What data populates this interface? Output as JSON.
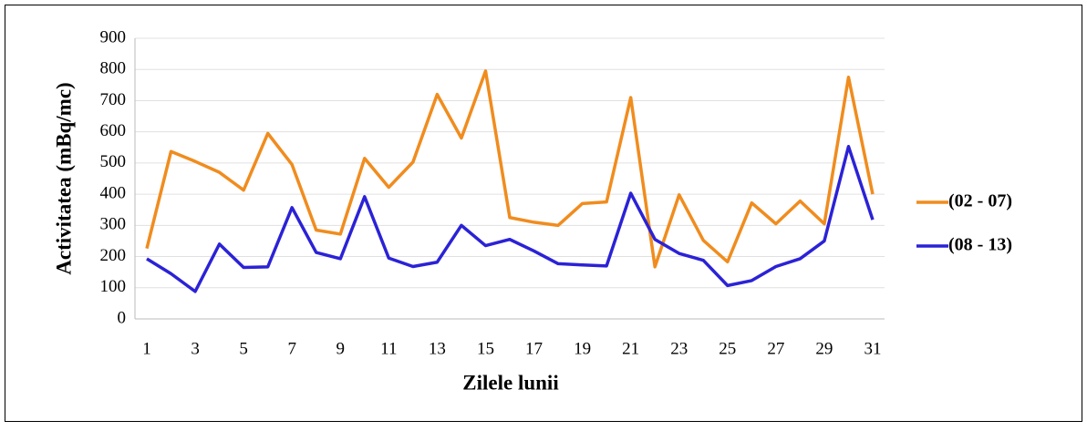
{
  "chart_data": {
    "type": "line",
    "x_label": "Zilele lunii",
    "y_label": "Activitatea (mBq/mc)",
    "categories": [
      1,
      null,
      3,
      null,
      5,
      null,
      7,
      null,
      9,
      null,
      11,
      null,
      13,
      null,
      15,
      null,
      17,
      null,
      19,
      null,
      21,
      null,
      23,
      null,
      25,
      null,
      27,
      null,
      29,
      null,
      31
    ],
    "series": [
      {
        "name": "(02 - 07)",
        "color": "#f08c1e",
        "values": [
          226,
          537,
          505,
          470,
          413,
          595,
          495,
          285,
          272,
          515,
          422,
          503,
          720,
          580,
          795,
          325,
          310,
          300,
          370,
          375,
          710,
          167,
          398,
          252,
          183,
          372,
          305,
          378,
          305,
          775,
          400
        ]
      },
      {
        "name": "(08 - 13)",
        "color": "#2b22d6",
        "values": [
          193,
          145,
          88,
          240,
          165,
          167,
          357,
          213,
          193,
          392,
          195,
          168,
          182,
          300,
          235,
          255,
          218,
          177,
          173,
          170,
          403,
          255,
          210,
          188,
          107,
          123,
          168,
          193,
          250,
          553,
          318
        ]
      }
    ],
    "ylim": [
      0,
      900
    ],
    "yticks": [
      0,
      100,
      200,
      300,
      400,
      500,
      600,
      700,
      800,
      900
    ],
    "grid": true,
    "legend": "right"
  }
}
